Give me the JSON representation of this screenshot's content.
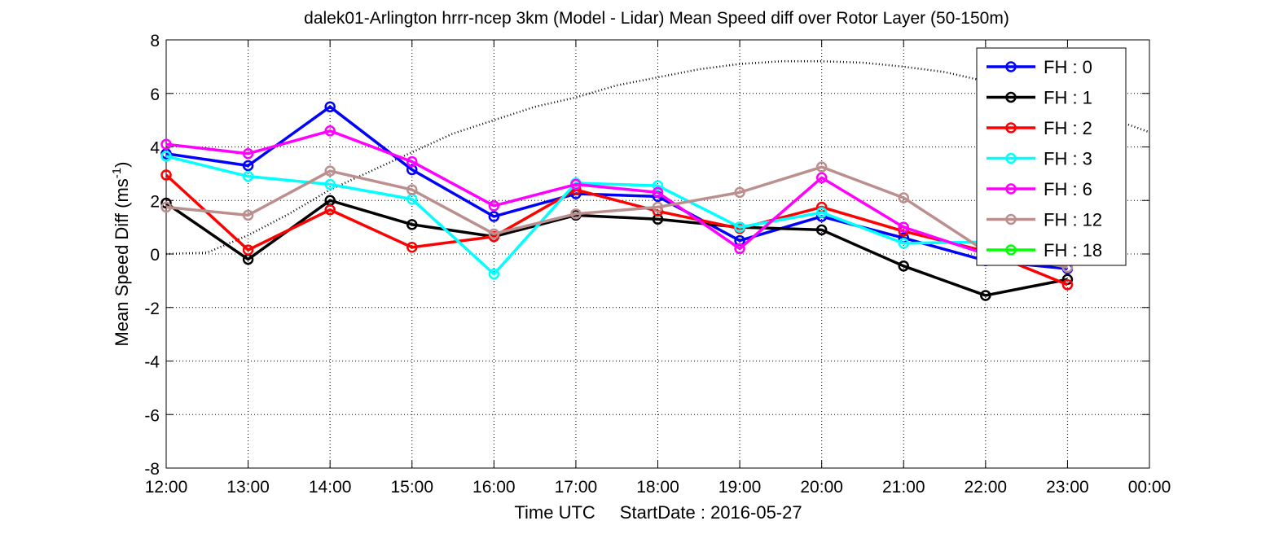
{
  "chart_data": {
    "type": "line",
    "title": "dalek01-Arlington hrrr-ncep 3km (Model - Lidar) Mean Speed diff over Rotor Layer (50-150m)",
    "xlabel_time": "Time UTC",
    "xlabel_start": "StartDate : 2016-05-27",
    "ylabel_main": "Mean Speed Diff (ms",
    "ylabel_sup": "-1",
    "ylabel_end": ")",
    "x_tick_labels": [
      "12:00",
      "13:00",
      "14:00",
      "15:00",
      "16:00",
      "17:00",
      "18:00",
      "19:00",
      "20:00",
      "21:00",
      "22:00",
      "23:00",
      "00:00"
    ],
    "x_hours": [
      12,
      13,
      14,
      15,
      16,
      17,
      18,
      19,
      20,
      21,
      22,
      23,
      24
    ],
    "xlim": [
      12,
      24
    ],
    "ylim": [
      -8,
      8
    ],
    "y_ticks": [
      -8,
      -6,
      -4,
      -2,
      0,
      2,
      4,
      6,
      8
    ],
    "grid": true,
    "legend_position": "top-right",
    "series": [
      {
        "name": "FH : 0",
        "color": "#0000ff",
        "x": [
          12,
          13,
          14,
          15,
          16,
          17,
          18,
          19,
          20,
          21,
          22,
          23
        ],
        "values": [
          3.75,
          3.3,
          5.5,
          3.15,
          1.4,
          2.25,
          2.15,
          0.5,
          1.4,
          0.6,
          -0.25,
          -0.55
        ]
      },
      {
        "name": "FH : 1",
        "color": "#000000",
        "x": [
          12,
          13,
          14,
          15,
          16,
          17,
          18,
          19,
          20,
          21,
          22,
          23
        ],
        "values": [
          1.9,
          -0.2,
          2.0,
          1.1,
          0.65,
          1.45,
          1.3,
          1.0,
          0.9,
          -0.45,
          -1.55,
          -0.95
        ]
      },
      {
        "name": "FH : 2",
        "color": "#ff0000",
        "x": [
          12,
          13,
          14,
          15,
          16,
          17,
          18,
          19,
          20,
          21,
          22,
          23
        ],
        "values": [
          2.95,
          0.15,
          1.65,
          0.25,
          0.65,
          2.4,
          1.6,
          0.95,
          1.75,
          0.85,
          0.1,
          -1.15
        ]
      },
      {
        "name": "FH : 3",
        "color": "#00ffff",
        "x": [
          12,
          13,
          14,
          15,
          16,
          17,
          18,
          19,
          20,
          21,
          22,
          23
        ],
        "values": [
          3.65,
          2.9,
          2.6,
          2.05,
          -0.75,
          2.65,
          2.55,
          1.0,
          1.55,
          0.4,
          0.45,
          null
        ]
      },
      {
        "name": "FH : 6",
        "color": "#ff00ff",
        "x": [
          12,
          13,
          14,
          15,
          16,
          17,
          18,
          19,
          20,
          21,
          22,
          23
        ],
        "values": [
          4.1,
          3.75,
          4.6,
          3.45,
          1.8,
          2.6,
          2.3,
          0.2,
          2.85,
          1.0,
          0.0,
          null
        ]
      },
      {
        "name": "FH : 12",
        "color": "#bc8f8f",
        "x": [
          12,
          13,
          14,
          15,
          16,
          17,
          18,
          19,
          20,
          21,
          22,
          23
        ],
        "values": [
          1.75,
          1.45,
          3.1,
          2.4,
          0.75,
          1.5,
          1.75,
          2.3,
          3.25,
          2.1,
          0.1,
          -0.5
        ]
      },
      {
        "name": "FH : 18",
        "color": "#00ff00",
        "x": [],
        "values": []
      }
    ],
    "reference_curve": {
      "style": "dotted",
      "color": "#000000",
      "x": [
        12,
        12.5,
        13,
        13.5,
        14,
        14.5,
        15,
        15.5,
        16,
        16.5,
        17,
        17.5,
        18,
        18.5,
        19,
        19.5,
        20,
        20.5,
        21,
        21.5,
        22,
        22.5,
        23,
        23.5,
        24
      ],
      "values": [
        0,
        0.05,
        0.7,
        1.5,
        2.4,
        3.1,
        3.8,
        4.5,
        5.0,
        5.5,
        5.85,
        6.3,
        6.6,
        6.9,
        7.1,
        7.2,
        7.2,
        7.15,
        7.0,
        6.8,
        6.45,
        6.05,
        5.6,
        5.1,
        4.55
      ]
    }
  }
}
